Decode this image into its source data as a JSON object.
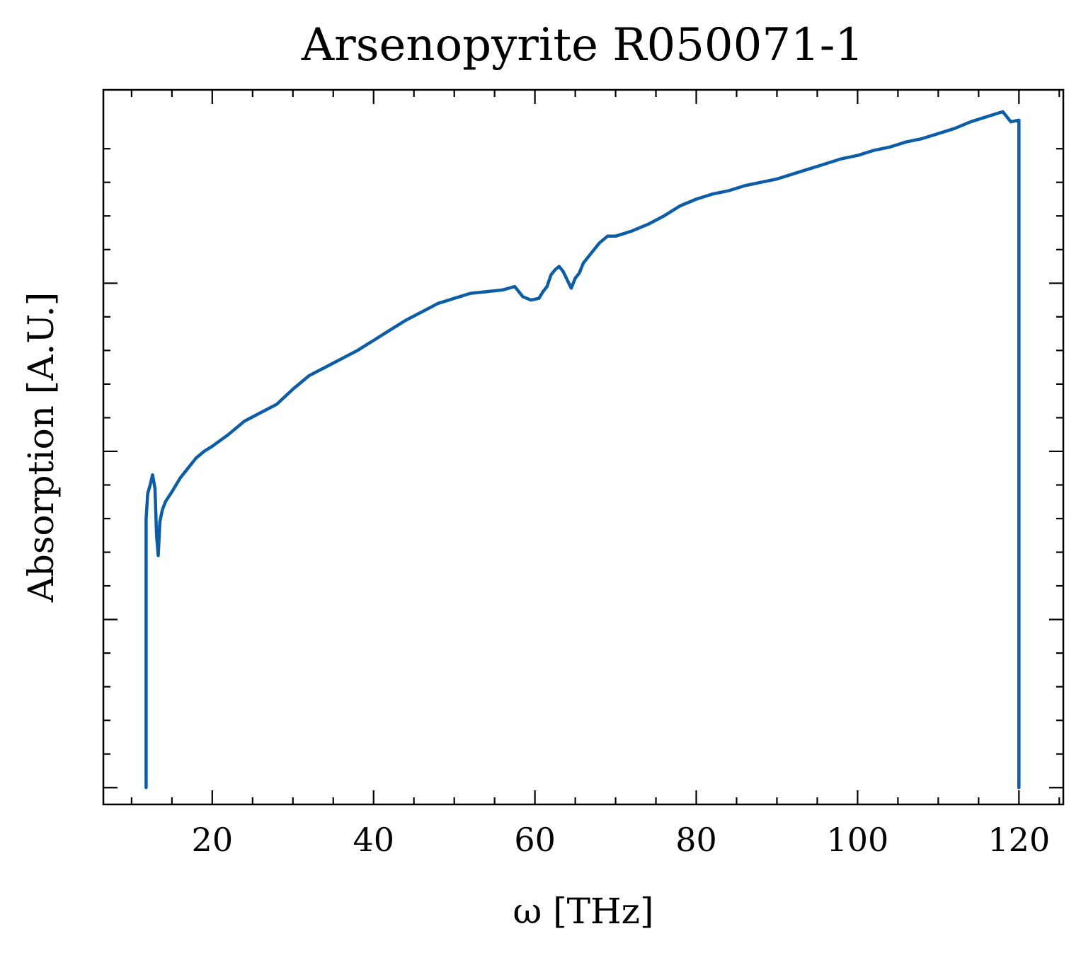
{
  "chart_data": {
    "type": "line",
    "title": "Arsenopyrite R050071-1",
    "xlabel": "ω [THz]",
    "ylabel": "Absorption [A.U.]",
    "xlim": [
      6.5,
      125.5
    ],
    "ylim": [
      -0.1,
      4.15
    ],
    "xticks": [
      20,
      40,
      60,
      80,
      100,
      120
    ],
    "yticks": [
      0,
      1,
      2,
      3
    ],
    "yticklabels_shown": false,
    "grid": false,
    "line_color": "#0C5DA5",
    "series": [
      {
        "x": [
          11.8,
          11.8,
          12.0,
          12.3,
          12.6,
          12.9,
          13.1,
          13.3,
          13.5,
          13.8,
          14.2,
          15.0,
          16.0,
          17.0,
          18.0,
          19.0,
          20.0,
          22.0,
          24.0,
          26.0,
          28.0,
          30.0,
          32.0,
          34.0,
          36.0,
          38.0,
          40.0,
          42.0,
          44.0,
          46.0,
          48.0,
          50.0,
          52.0,
          54.0,
          56.0,
          57.5,
          58.5,
          59.5,
          60.5,
          61.0,
          61.5,
          62.0,
          62.5,
          63.0,
          63.5,
          64.0,
          64.5,
          65.0,
          65.5,
          66.0,
          67.0,
          68.0,
          69.0,
          70.0,
          72.0,
          74.0,
          76.0,
          78.0,
          80.0,
          82.0,
          84.0,
          86.0,
          88.0,
          90.0,
          92.0,
          94.0,
          96.0,
          98.0,
          100.0,
          102.0,
          104.0,
          106.0,
          108.0,
          110.0,
          112.0,
          114.0,
          116.0,
          118.0,
          119.0,
          120.0,
          120.0
        ],
        "y": [
          0.0,
          1.6,
          1.75,
          1.8,
          1.86,
          1.78,
          1.5,
          1.38,
          1.58,
          1.65,
          1.7,
          1.76,
          1.84,
          1.9,
          1.96,
          2.0,
          2.03,
          2.1,
          2.18,
          2.23,
          2.28,
          2.37,
          2.45,
          2.5,
          2.55,
          2.6,
          2.66,
          2.72,
          2.78,
          2.83,
          2.88,
          2.91,
          2.94,
          2.95,
          2.96,
          2.98,
          2.92,
          2.9,
          2.91,
          2.95,
          2.98,
          3.05,
          3.08,
          3.1,
          3.07,
          3.02,
          2.97,
          3.03,
          3.06,
          3.12,
          3.18,
          3.24,
          3.28,
          3.28,
          3.31,
          3.35,
          3.4,
          3.46,
          3.5,
          3.53,
          3.55,
          3.58,
          3.6,
          3.62,
          3.65,
          3.68,
          3.71,
          3.74,
          3.76,
          3.79,
          3.81,
          3.84,
          3.86,
          3.89,
          3.92,
          3.96,
          3.99,
          4.02,
          3.96,
          3.97,
          0.0
        ]
      }
    ]
  }
}
